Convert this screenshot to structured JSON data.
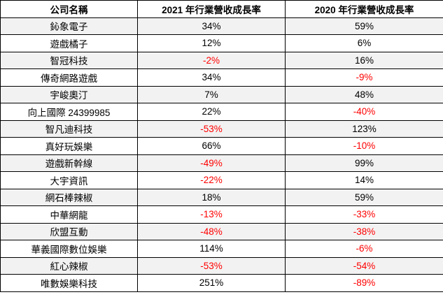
{
  "table": {
    "headers": [
      "公司名稱",
      "2021 年行業營收成長率",
      "2020 年行業營收成長率"
    ],
    "rows": [
      {
        "company": "鈊象電子",
        "y2021": "34%",
        "y2020": "59%"
      },
      {
        "company": "遊戲橘子",
        "y2021": "12%",
        "y2020": "6%"
      },
      {
        "company": "智冠科技",
        "y2021": "-2%",
        "y2020": "16%"
      },
      {
        "company": "傳奇網路遊戲",
        "y2021": "34%",
        "y2020": "-9%"
      },
      {
        "company": "宇峻奧汀",
        "y2021": "7%",
        "y2020": "48%"
      },
      {
        "company": "向上國際 24399985",
        "y2021": "22%",
        "y2020": "-40%"
      },
      {
        "company": "智凡迪科技",
        "y2021": "-53%",
        "y2020": "123%"
      },
      {
        "company": "真好玩娛樂",
        "y2021": "66%",
        "y2020": "-10%"
      },
      {
        "company": "遊戲新幹線",
        "y2021": "-49%",
        "y2020": "99%"
      },
      {
        "company": "大宇資訊",
        "y2021": "-22%",
        "y2020": "14%"
      },
      {
        "company": "網石棒辣椒",
        "y2021": "18%",
        "y2020": "59%"
      },
      {
        "company": "中華網龍",
        "y2021": "-13%",
        "y2020": "-33%"
      },
      {
        "company": "欣盟互動",
        "y2021": "-48%",
        "y2020": "-38%"
      },
      {
        "company": "華義國際數位娛樂",
        "y2021": "114%",
        "y2020": "-6%"
      },
      {
        "company": "紅心辣椒",
        "y2021": "-53%",
        "y2020": "-54%"
      },
      {
        "company": "唯數娛樂科技",
        "y2021": "251%",
        "y2020": "-89%"
      }
    ]
  },
  "colors": {
    "negative": "#ff0000",
    "shaded_row": "#f2f2f2",
    "border": "#000000"
  }
}
